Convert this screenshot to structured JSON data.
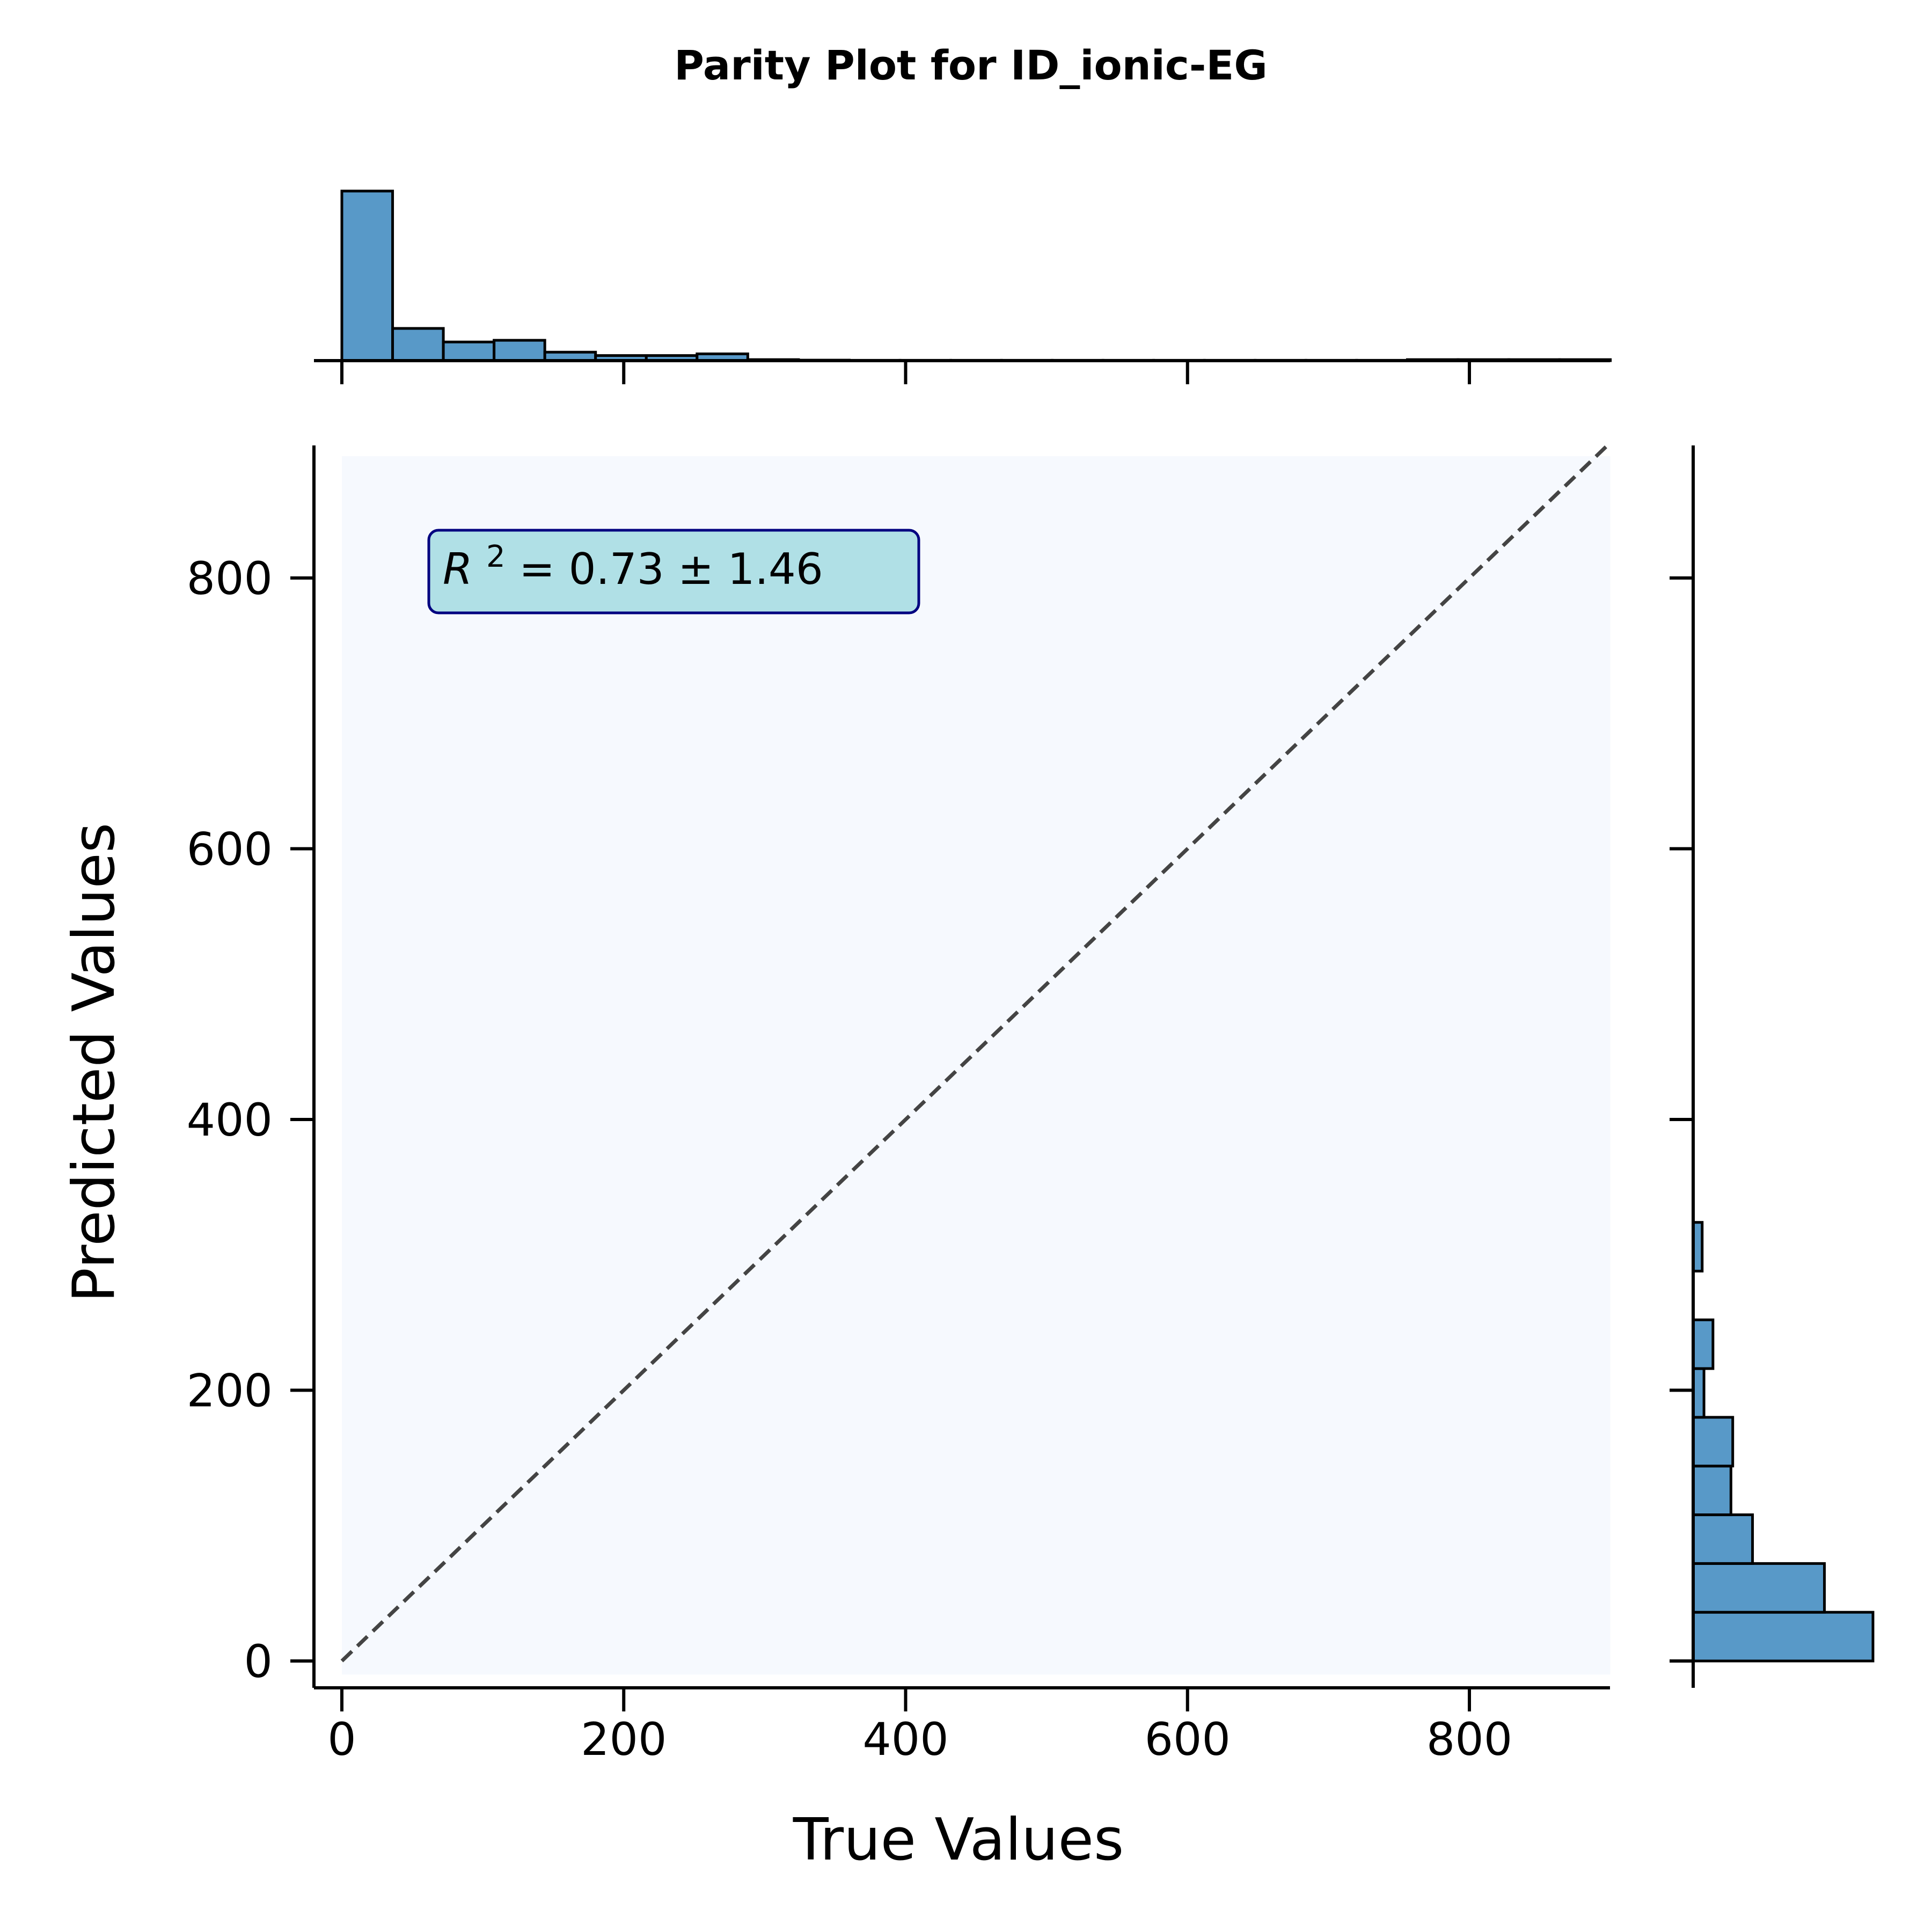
{
  "chart_data": {
    "type": "scatter",
    "title": "Parity Plot for ID_ionic-EG",
    "xlabel": "True Values",
    "ylabel": "Predicted Values",
    "xlim": [
      -20,
      900
    ],
    "ylim": [
      -20,
      900
    ],
    "xticks": [
      0,
      200,
      400,
      600,
      800
    ],
    "yticks": [
      0,
      200,
      400,
      600,
      800
    ],
    "tick_labels": {
      "x": [
        "0",
        "200",
        "400",
        "600",
        "800"
      ],
      "y": [
        "0",
        "200",
        "400",
        "600",
        "800"
      ]
    },
    "parity_line": {
      "from": [
        0,
        0
      ],
      "to": [
        900,
        900
      ],
      "style": "dashed",
      "color": "#444444"
    },
    "annotation": {
      "r_symbol": "R",
      "sup": "2",
      "text": " = 0.73 ± 1.46",
      "position": "top-left",
      "face": "#b0e0e6",
      "edge": "#000080"
    },
    "plot_background": "#f6f9fe",
    "grid": false,
    "colors": {
      "hist_fill": "#5899c8",
      "hist_edge": "#000000"
    },
    "marginal_x_hist": {
      "bin_edges": [
        0,
        36,
        72,
        108,
        144,
        180,
        216,
        252,
        288,
        324,
        360,
        396,
        432,
        468,
        504,
        540,
        576,
        612,
        648,
        684,
        720,
        756,
        792,
        828,
        864,
        900
      ],
      "counts": [
        100,
        19,
        11,
        12,
        5,
        3,
        3,
        4,
        0.6,
        0.3,
        0.2,
        0.2,
        0.2,
        0.2,
        0.2,
        0.2,
        0.2,
        0.2,
        0.2,
        0.2,
        0.2,
        0.6,
        0.6,
        0.6,
        0.6
      ]
    },
    "marginal_y_hist": {
      "bin_edges": [
        0,
        36,
        72,
        108,
        144,
        180,
        216,
        252,
        288,
        324
      ],
      "counts": [
        100,
        73,
        33,
        21,
        22,
        6,
        11,
        0,
        5
      ]
    }
  }
}
